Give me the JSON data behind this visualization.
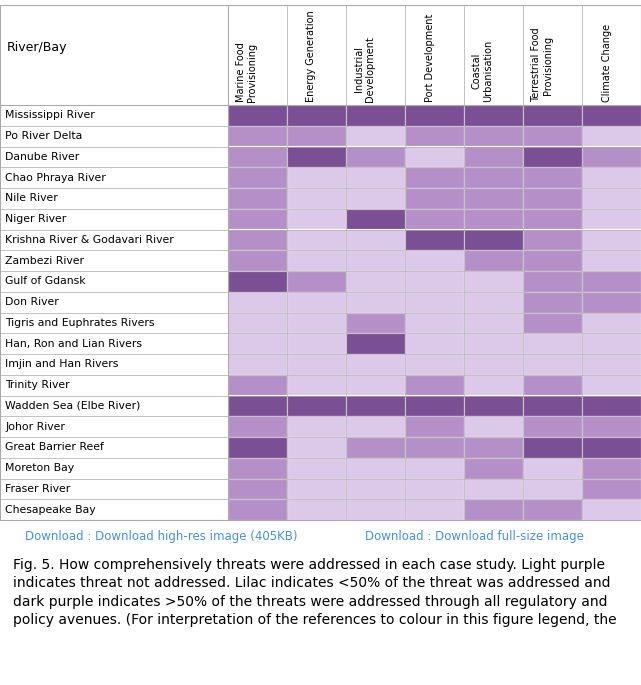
{
  "rows": [
    "Mississippi River",
    "Po River Delta",
    "Danube River",
    "Chao Phraya River",
    "Nile River",
    "Niger River",
    "Krishna River & Godavari River",
    "Zambezi River",
    "Gulf of Gdansk",
    "Don River",
    "Tigris and Euphrates Rivers",
    "Han, Ron and Lian Rivers",
    "Imjin and Han Rivers",
    "Trinity River",
    "Wadden Sea (Elbe River)",
    "Johor River",
    "Great Barrier Reef",
    "Moreton Bay",
    "Fraser River",
    "Chesapeake Bay"
  ],
  "cols": [
    "Marine Food\nProvisioning",
    "Energy Generation",
    "Industrial\nDevelopment",
    "Port Development",
    "Coastal\nUrbanisation",
    "Terrestrial Food\nProvisioning",
    "Climate Change"
  ],
  "data": [
    [
      3,
      3,
      3,
      3,
      3,
      3,
      3
    ],
    [
      2,
      2,
      1,
      2,
      2,
      2,
      1
    ],
    [
      2,
      3,
      2,
      1,
      2,
      3,
      2
    ],
    [
      2,
      1,
      1,
      2,
      2,
      2,
      1
    ],
    [
      2,
      1,
      1,
      2,
      2,
      2,
      1
    ],
    [
      2,
      1,
      3,
      2,
      2,
      2,
      1
    ],
    [
      2,
      1,
      1,
      3,
      3,
      2,
      1
    ],
    [
      2,
      1,
      1,
      1,
      2,
      2,
      1
    ],
    [
      3,
      2,
      1,
      1,
      1,
      2,
      2
    ],
    [
      1,
      1,
      1,
      1,
      1,
      2,
      2
    ],
    [
      1,
      1,
      2,
      1,
      1,
      2,
      1
    ],
    [
      1,
      1,
      3,
      1,
      1,
      1,
      1
    ],
    [
      1,
      1,
      1,
      1,
      1,
      1,
      1
    ],
    [
      2,
      1,
      1,
      2,
      1,
      2,
      1
    ],
    [
      3,
      3,
      3,
      3,
      3,
      3,
      3
    ],
    [
      2,
      1,
      1,
      2,
      1,
      2,
      2
    ],
    [
      3,
      1,
      2,
      2,
      2,
      3,
      3
    ],
    [
      2,
      1,
      1,
      1,
      2,
      1,
      2
    ],
    [
      2,
      1,
      1,
      1,
      1,
      1,
      2
    ],
    [
      2,
      1,
      1,
      1,
      2,
      2,
      1
    ]
  ],
  "color_light": "#dcc8e8",
  "color_medium": "#b48fc8",
  "color_dark": "#7b4f94",
  "background": "#ffffff",
  "download_text1": "Download : Download high-res image (405KB)",
  "download_text2": "Download : Download full-size image",
  "caption_line1": "Fig. 5. How comprehensively threats were addressed in each case study. Light purple",
  "caption_line2": "indicates threat not addressed. Lilac indicates <50% of the threat was addressed and",
  "caption_line3": "dark purple indicates >50% of the threats were addressed through all regulatory and",
  "caption_line4": "policy avenues. (For interpretation of the references to colour in this figure legend, the",
  "row_label": "River/Bay",
  "border_color": "#aaaaaa",
  "download_color": "#4a90d9",
  "caption_fontsize": 10.0,
  "label_fontsize": 7.8,
  "header_fontsize": 7.0,
  "row_label_fontsize": 9.0
}
